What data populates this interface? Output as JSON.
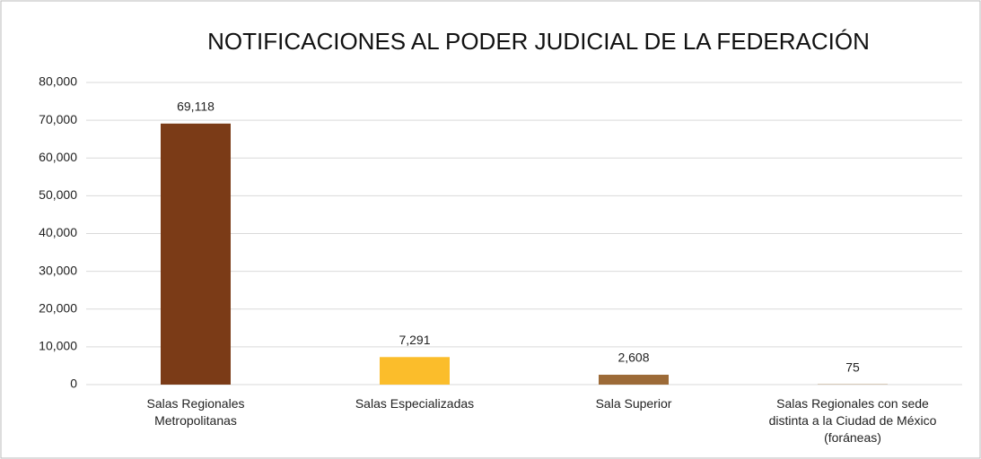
{
  "chart_data": {
    "type": "bar",
    "title": "NOTIFICACIONES AL PODER JUDICIAL DE LA FEDERACIÓN",
    "categories": [
      [
        "Salas Regionales",
        "Metropolitanas"
      ],
      [
        "Salas Especializadas"
      ],
      [
        "Sala Superior"
      ],
      [
        "Salas Regionales con sede",
        "distinta a la Ciudad de México",
        "(foráneas)"
      ]
    ],
    "values": [
      69118,
      7291,
      2608,
      75
    ],
    "value_labels": [
      "69,118",
      "7,291",
      "2,608",
      "75"
    ],
    "colors": [
      "#7b3b17",
      "#fbbd2b",
      "#9c6a37",
      "#9c6a37"
    ],
    "ylim": [
      0,
      80000
    ],
    "yticks": [
      0,
      {
        "value": 10000,
        "label": "10,000"
      },
      {
        "value": 20000,
        "label": "20,000"
      },
      {
        "value": 30000,
        "label": "30,000"
      },
      {
        "value": 40000,
        "label": "40,000"
      },
      {
        "value": 50000,
        "label": "50,000"
      },
      {
        "value": 60000,
        "label": "60,000"
      },
      {
        "value": 70000,
        "label": "70,000"
      },
      {
        "value": 80000,
        "label": "80,000"
      }
    ],
    "grid": true
  }
}
